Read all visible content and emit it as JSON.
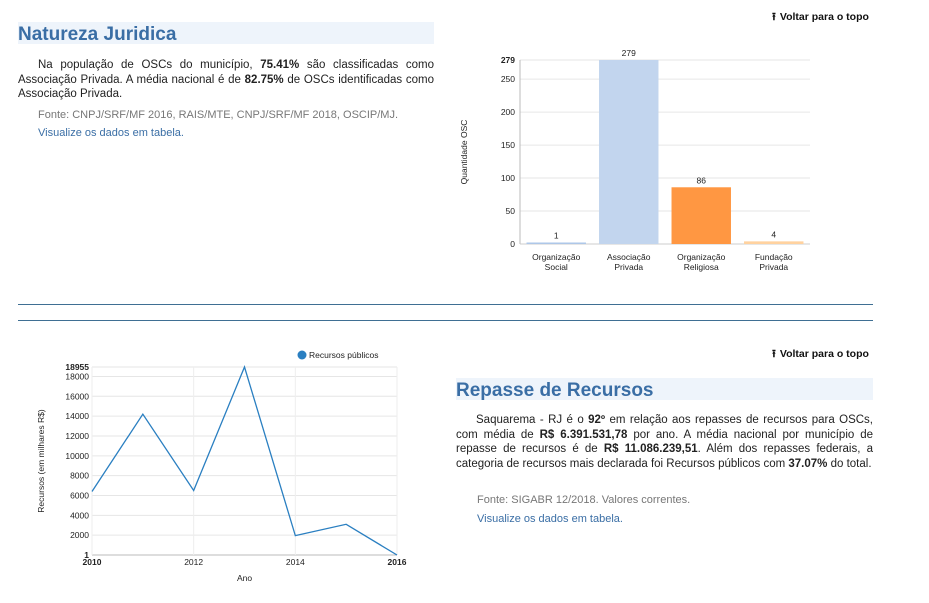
{
  "top_link": {
    "label": "Voltar para o topo"
  },
  "natureza": {
    "title": "Natureza Juridica",
    "p1": "Na população de OSCs do município, ",
    "pct1": "75.41%",
    "p2": " são classificadas como Associação Privada. A média nacional é de ",
    "pct2": "82.75%",
    "p3": " de OSCs identificadas como Associação Privada.",
    "source": "Fonte: CNPJ/SRF/MF 2016, RAIS/MTE, CNPJ/SRF/MF 2018, OSCIP/MJ.",
    "table_link": "Visualize os dados em tabela."
  },
  "repasse": {
    "title": "Repasse de Recursos",
    "p1": "Saquarema - RJ é o ",
    "rank": "92º",
    "p2": " em relação aos repasses de recursos para OSCs, com média de ",
    "avg": "R$ 6.391.531,78",
    "p3": " por ano. A média nacional por município de repasse de recursos é de ",
    "national": "R$ 11.086.239,51",
    "p4": ". Além dos repasses federais, a categoria de recursos mais declarada foi Recursos públicos com ",
    "pct": "37.07%",
    "p5": " do total.",
    "source": "Fonte: SIGABR 12/2018. Valores correntes.",
    "table_link": "Visualize os dados em tabela."
  },
  "chart_data": [
    {
      "type": "bar",
      "ylabel": "Quantidade OSC",
      "categories": [
        [
          "Organização",
          "Social"
        ],
        [
          "Associação",
          "Privada"
        ],
        [
          "Organização",
          "Religiosa"
        ],
        [
          "Fundação",
          "Privada"
        ]
      ],
      "values": [
        1,
        279,
        86,
        4
      ],
      "colors": [
        "#aec7e8",
        "#c2d5ee",
        "#ff9742",
        "#ffd29f"
      ],
      "yticks": [
        0,
        50,
        100,
        150,
        200,
        250,
        279
      ],
      "ylim": [
        0,
        279
      ],
      "grid": true
    },
    {
      "type": "line",
      "ylabel": "Recursos (em milhares R$)",
      "xlabel": "Ano",
      "series": [
        {
          "name": "Recursos públicos",
          "color": "#2a7fc1",
          "x": [
            2010,
            2011,
            2012,
            2013,
            2014,
            2015,
            2016
          ],
          "values": [
            6400,
            14200,
            6500,
            18955,
            1950,
            3100,
            1
          ]
        }
      ],
      "xticks": [
        "2010",
        "2012",
        "2014",
        "2016"
      ],
      "yticks": [
        1,
        2000,
        4000,
        6000,
        8000,
        10000,
        12000,
        14000,
        16000,
        18000,
        18955
      ],
      "ylim": [
        1,
        18955
      ],
      "xlim": [
        2010,
        2016
      ],
      "grid": true,
      "legend": "top-right"
    }
  ]
}
